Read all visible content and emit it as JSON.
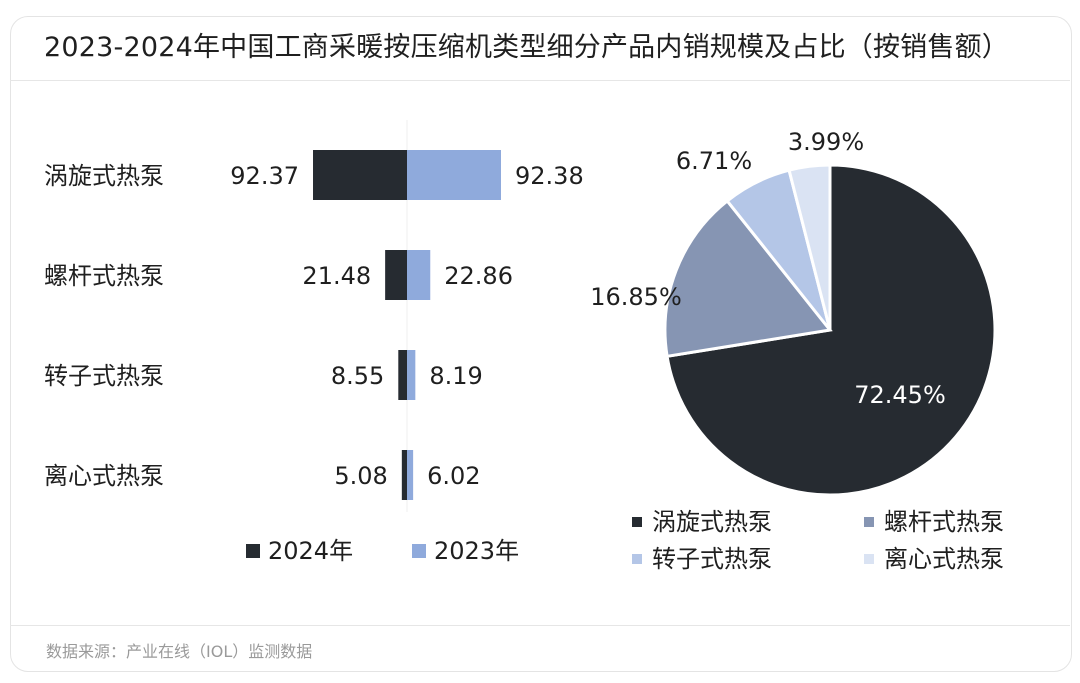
{
  "title": "2023-2024年中国工商采暖按压缩机类型细分产品内销规模及占比（按销售额）",
  "source": "数据来源：产业在线（IOL）监测数据",
  "colors": {
    "dark": "#262b31",
    "blue": "#8faadc",
    "gray_blue": "#8695b3",
    "light_blue": "#b4c6e7",
    "pale_blue": "#dae3f3"
  },
  "chart_data": [
    {
      "type": "bar",
      "orientation": "horizontal-butterfly",
      "categories": [
        "涡旋式热泵",
        "螺杆式热泵",
        "转子式热泵",
        "离心式热泵"
      ],
      "series": [
        {
          "name": "2024年",
          "values": [
            92.37,
            21.48,
            8.55,
            5.08
          ],
          "color": "#262b31"
        },
        {
          "name": "2023年",
          "values": [
            92.38,
            22.86,
            8.19,
            6.02
          ],
          "color": "#8faadc"
        }
      ],
      "legend": "bottom",
      "grid": false
    },
    {
      "type": "pie",
      "categories": [
        "涡旋式热泵",
        "螺杆式热泵",
        "转子式热泵",
        "离心式热泵"
      ],
      "values": [
        72.45,
        16.85,
        6.71,
        3.99
      ],
      "labels": [
        "72.45%",
        "16.85%",
        "6.71%",
        "3.99%"
      ],
      "colors": [
        "#262b31",
        "#8695b3",
        "#b4c6e7",
        "#dae3f3"
      ],
      "legend": "bottom"
    }
  ]
}
